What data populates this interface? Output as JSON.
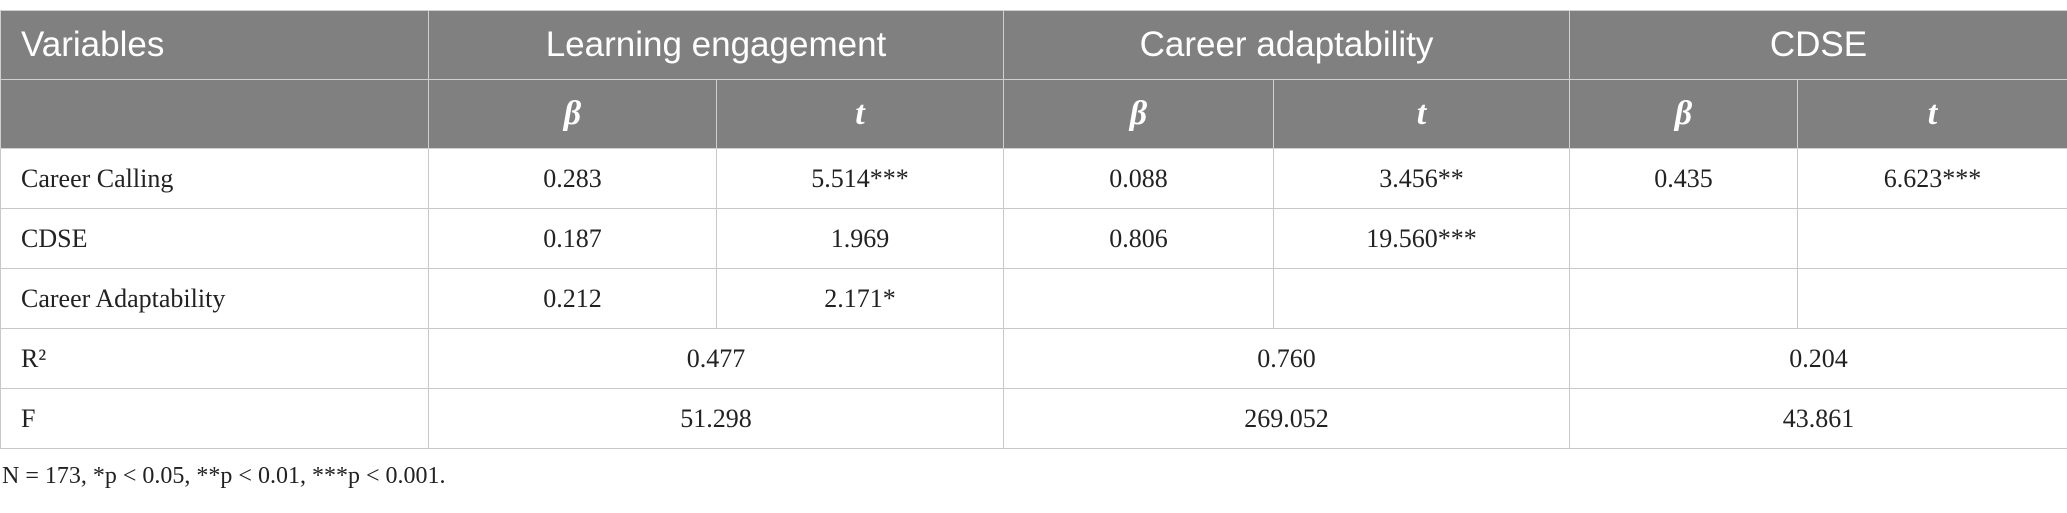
{
  "table": {
    "header": {
      "first": "Variables",
      "groups": [
        "Learning engagement",
        "Career adaptability",
        "CDSE"
      ],
      "subheaders": [
        "β",
        "t",
        "β",
        "t",
        "β",
        "t"
      ]
    },
    "rows": [
      {
        "label": "Career Calling",
        "values": [
          "0.283",
          "5.514***",
          "0.088",
          "3.456**",
          "0.435",
          "6.623***"
        ]
      },
      {
        "label": "CDSE",
        "values": [
          "0.187",
          "1.969",
          "0.806",
          "19.560***"
        ]
      },
      {
        "label": "Career Adaptability",
        "values": [
          "0.212",
          "2.171*"
        ]
      }
    ],
    "summary": [
      {
        "label": "R²",
        "values": [
          "0.477",
          "0.760",
          "0.204"
        ]
      },
      {
        "label": "F",
        "values": [
          "51.298",
          "269.052",
          "43.861"
        ]
      }
    ]
  },
  "footnote": "N = 173, *p < 0.05, **p < 0.01, ***p < 0.001."
}
